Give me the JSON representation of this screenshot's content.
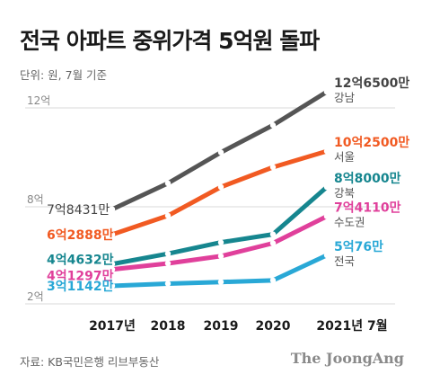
{
  "header": {
    "title": "전국 아파트 중위가격 5억원 돌파",
    "unit_note": "단위: 원, 7월 기준"
  },
  "footer": {
    "source": "자료: KB국민은행 리브부동산",
    "brand": "The JoongAng"
  },
  "chart_data": {
    "type": "line",
    "title": "전국 아파트 중위가격 5억원 돌파",
    "xlabel": "",
    "ylabel": "",
    "categories": [
      "2017년",
      "2018",
      "2019",
      "2020",
      "2021년 7월"
    ],
    "y_ticks": [
      {
        "value": 120000,
        "label": "12억"
      },
      {
        "value": 80000,
        "label": "8억"
      },
      {
        "value": 20000,
        "label": "2억"
      }
    ],
    "grid": true,
    "legend": "none",
    "series": [
      {
        "name": "강남",
        "color": "#555555",
        "values": [
          78431,
          89500,
          102000,
          113000,
          126500
        ],
        "start_label": "7억8431만",
        "end_label": "12억6500만"
      },
      {
        "name": "서울",
        "color": "#f15a22",
        "values": [
          62888,
          74500,
          88000,
          96000,
          102500
        ],
        "start_label": "6억2888만",
        "end_label": "10억2500만"
      },
      {
        "name": "강북",
        "color": "#16868f",
        "values": [
          44632,
          51000,
          58000,
          63000,
          88000
        ],
        "start_label": "4억4632만",
        "end_label": "8억8000만"
      },
      {
        "name": "수도권",
        "color": "#e0409b",
        "values": [
          41297,
          45000,
          49500,
          57500,
          74110
        ],
        "start_label": "4억1297만",
        "end_label": "7억4110만"
      },
      {
        "name": "전국",
        "color": "#29a8d6",
        "values": [
          31142,
          32500,
          33500,
          34500,
          50076
        ],
        "start_label": "3억1142만",
        "end_label": "5억76만"
      }
    ]
  }
}
